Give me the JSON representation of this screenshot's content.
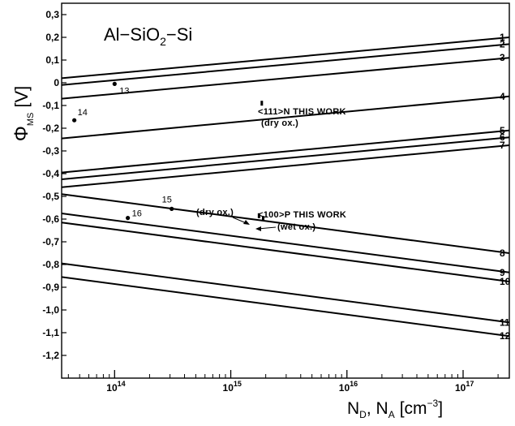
{
  "chart_data": {
    "type": "line",
    "title": "Al−SiO2−Si",
    "title_parts": [
      "Al−SiO",
      "2",
      "−Si"
    ],
    "ylabel": "ΦMS [V]",
    "ylabel_parts": [
      "Φ",
      "MS",
      "[V]"
    ],
    "xlabel": "ND , NA [cm−3]",
    "xlabel_parts": [
      "N",
      "D",
      ", N",
      "A",
      "[cm",
      "−3",
      "]"
    ],
    "xscale": "log",
    "xlim": [
      35000000000000.0,
      2.5e+17
    ],
    "ylim": [
      -1.3,
      0.35
    ],
    "y_ticks": [
      0.3,
      0.2,
      0.1,
      0,
      -0.1,
      -0.2,
      -0.3,
      -0.4,
      -0.5,
      -0.6,
      -0.7,
      -0.8,
      -0.9,
      -1.0,
      -1.1,
      -1.2
    ],
    "y_tick_labels": [
      "0,3",
      "0,2",
      "0,1",
      "0",
      "-0,1",
      "-0,2",
      "-0,3",
      "-0,4",
      "-0,5",
      "-0,6",
      "-0,7",
      "-0,8",
      "-0,9",
      "-1,0",
      "-1,1",
      "-1,2"
    ],
    "x_ticks": [
      {
        "value": 100000000000000.0,
        "base": "10",
        "exp": "14"
      },
      {
        "value": 1000000000000000.0,
        "base": "10",
        "exp": "15"
      },
      {
        "value": 1e+16,
        "base": "10",
        "exp": "16"
      },
      {
        "value": 1e+17,
        "base": "10",
        "exp": "17"
      }
    ],
    "grid": false,
    "series": [
      {
        "label": "1",
        "x": [
          35000000000000.0,
          2.5e+17
        ],
        "y": [
          0.02,
          0.2
        ]
      },
      {
        "label": "2",
        "x": [
          35000000000000.0,
          2.5e+17
        ],
        "y": [
          -0.01,
          0.17
        ]
      },
      {
        "label": "3",
        "x": [
          35000000000000.0,
          2.5e+17
        ],
        "y": [
          -0.07,
          0.11
        ]
      },
      {
        "label": "4",
        "x": [
          35000000000000.0,
          2.5e+17
        ],
        "y": [
          -0.245,
          -0.06
        ]
      },
      {
        "label": "5",
        "x": [
          35000000000000.0,
          2.5e+17
        ],
        "y": [
          -0.395,
          -0.21
        ]
      },
      {
        "label": "6",
        "x": [
          35000000000000.0,
          2.5e+17
        ],
        "y": [
          -0.425,
          -0.24
        ]
      },
      {
        "label": "7",
        "x": [
          35000000000000.0,
          2.5e+17
        ],
        "y": [
          -0.46,
          -0.275
        ]
      },
      {
        "label": "8",
        "x": [
          35000000000000.0,
          2.5e+17
        ],
        "y": [
          -0.49,
          -0.75
        ]
      },
      {
        "label": "9",
        "x": [
          35000000000000.0,
          2.5e+17
        ],
        "y": [
          -0.575,
          -0.835
        ]
      },
      {
        "label": "10",
        "x": [
          35000000000000.0,
          2.5e+17
        ],
        "y": [
          -0.615,
          -0.875
        ]
      },
      {
        "label": "11",
        "x": [
          35000000000000.0,
          2.5e+17
        ],
        "y": [
          -0.795,
          -1.055
        ]
      },
      {
        "label": "12",
        "x": [
          35000000000000.0,
          2.5e+17
        ],
        "y": [
          -0.855,
          -1.115
        ]
      }
    ],
    "points": [
      {
        "label": "13",
        "x": 100000000000000.0,
        "y": -0.005
      },
      {
        "label": "14",
        "x": 45000000000000.0,
        "y": -0.165
      },
      {
        "label": "15",
        "x": 310000000000000.0,
        "y": -0.555
      },
      {
        "label": "16",
        "x": 130000000000000.0,
        "y": -0.595
      }
    ],
    "this_work_points": [
      {
        "x": 1850000000000000.0,
        "y": -0.09
      },
      {
        "x": 1750000000000000.0,
        "y": -0.585
      },
      {
        "x": 1900000000000000.0,
        "y": -0.597
      }
    ],
    "annotations": {
      "n111": "<111>N  THIS  WORK",
      "n111_sub": "(dry  ox.)",
      "p100": "<100>P  THIS  WORK",
      "p100_dry": "(dry  ox.)",
      "p100_wet": "(wet  ox.)"
    }
  }
}
